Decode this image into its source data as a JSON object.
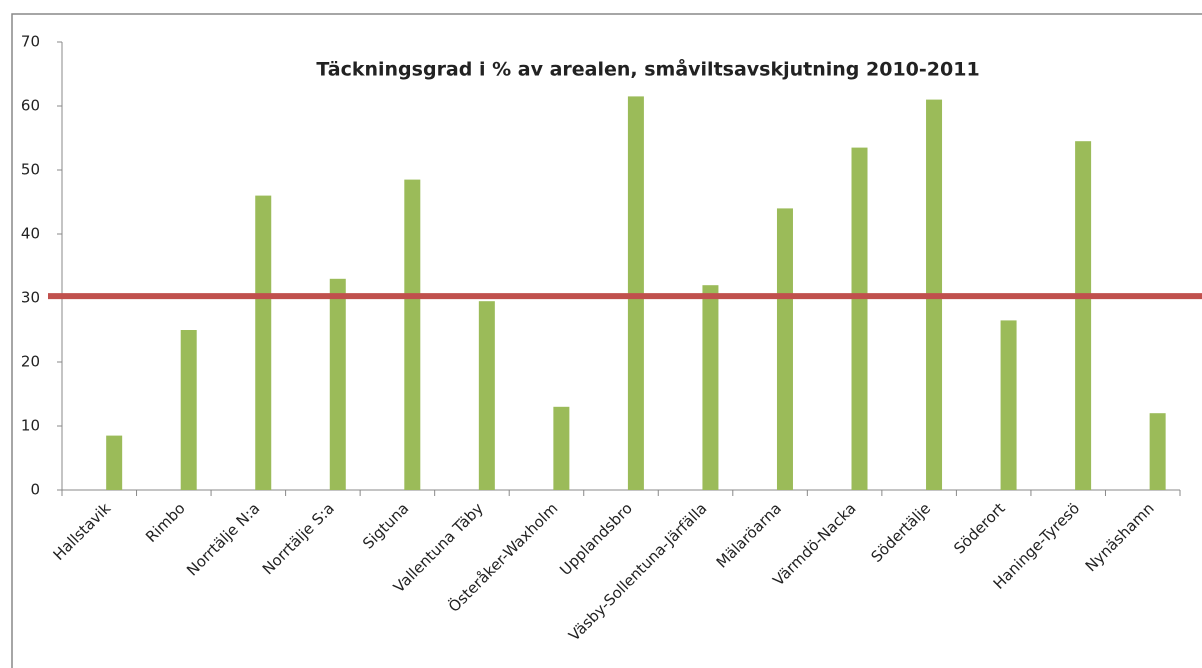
{
  "chart_data": {
    "type": "bar",
    "title": "Täckningsgrad  i % av arealen, småviltsavskjutning 2010-2011",
    "categories": [
      "Hallstavik",
      "Rimbo",
      "Norrtälje N:a",
      "Norrtälje S:a",
      "Sigtuna",
      "Vallentuna Täby",
      "Österåker-Waxholm",
      "Upplandsbro",
      "Väsby-Sollentuna-Järfälla",
      "Mälaröarna",
      "Värmdö-Nacka",
      "Södertälje",
      "Söderort",
      "Haninge-Tyresö",
      "Nynäshamn"
    ],
    "values": [
      8.5,
      25,
      46,
      33,
      48.5,
      29.5,
      13,
      61.5,
      32,
      44,
      53.5,
      61,
      26.5,
      54.5,
      12
    ],
    "color": "#9bbb59",
    "ylim": [
      0,
      70
    ],
    "yticks": [
      0,
      10,
      20,
      30,
      40,
      50,
      60,
      70
    ],
    "grid": false,
    "reference_line": {
      "value": 30.3,
      "color": "#c0504d"
    }
  }
}
